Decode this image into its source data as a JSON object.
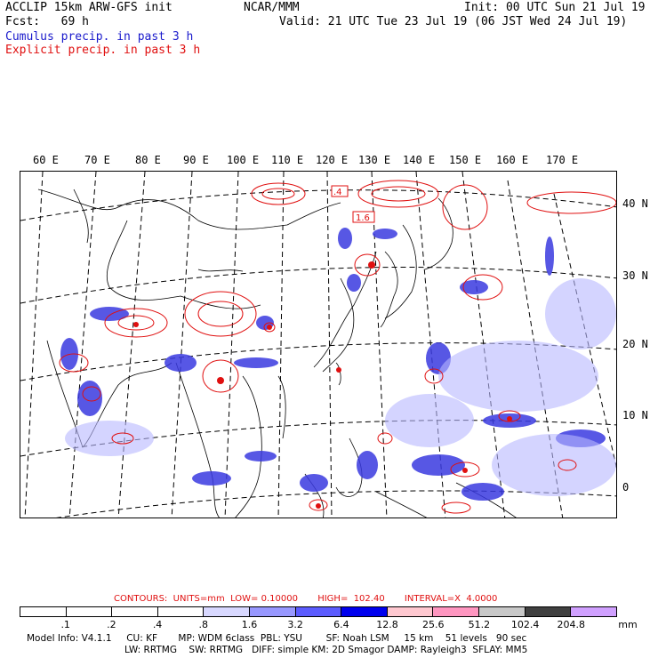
{
  "header": {
    "line1_left": "ACCLIP 15km ARW-GFS init",
    "line1_center": "NCAR/MMM",
    "line1_right": "Init: 00 UTC Sun 21 Jul 19",
    "line2_left": "Fcst:   69 h",
    "line2_right": "Valid: 21 UTC Tue 23 Jul 19 (06 JST Wed 24 Jul 19)",
    "line3": "Cumulus precip. in past 3 h",
    "line4": "Explicit precip. in past 3 h"
  },
  "lon_labels": [
    "60 E",
    "70 E",
    "80 E",
    "90 E",
    "100 E",
    "110 E",
    "120 E",
    "130 E",
    "140 E",
    "150 E",
    "160 E",
    "170 E"
  ],
  "lat_labels": [
    "40 N",
    "30 N",
    "20 N",
    "10 N",
    "0"
  ],
  "contour_labels": [
    ".4",
    "1.6"
  ],
  "contours_info": "CONTOURS:  UNITS=mm  LOW= 0.10000       HIGH=  102.40       INTERVAL=X  4.0000",
  "legend": {
    "labels": [
      ".1",
      ".2",
      ".4",
      ".8",
      "1.6",
      "3.2",
      "6.4",
      "12.8",
      "25.6",
      "51.2",
      "102.4",
      "204.8"
    ],
    "unit": "mm",
    "colors": [
      "#ffffff",
      "#ffffff",
      "#ffffff",
      "#ffffff",
      "#d8d8ff",
      "#9898ff",
      "#5c5cff",
      "#0000ee",
      "#ffc8d0",
      "#ff96c0",
      "#c8c8c8",
      "#404040",
      "#d0a0ff"
    ]
  },
  "model_info": {
    "line1": "Model Info: V4.1.1     CU: KF       MP: WDM 6class  PBL: YSU        SF: Noah LSM     15 km    51 levels   90 sec",
    "line2": "LW: RRTMG    SW: RRTMG   DIFF: simple KM: 2D Smagor DAMP: Rayleigh3  SFLAY: MM5"
  },
  "colors": {
    "cumulus": "#1a1acc",
    "explicit": "#e01010"
  }
}
